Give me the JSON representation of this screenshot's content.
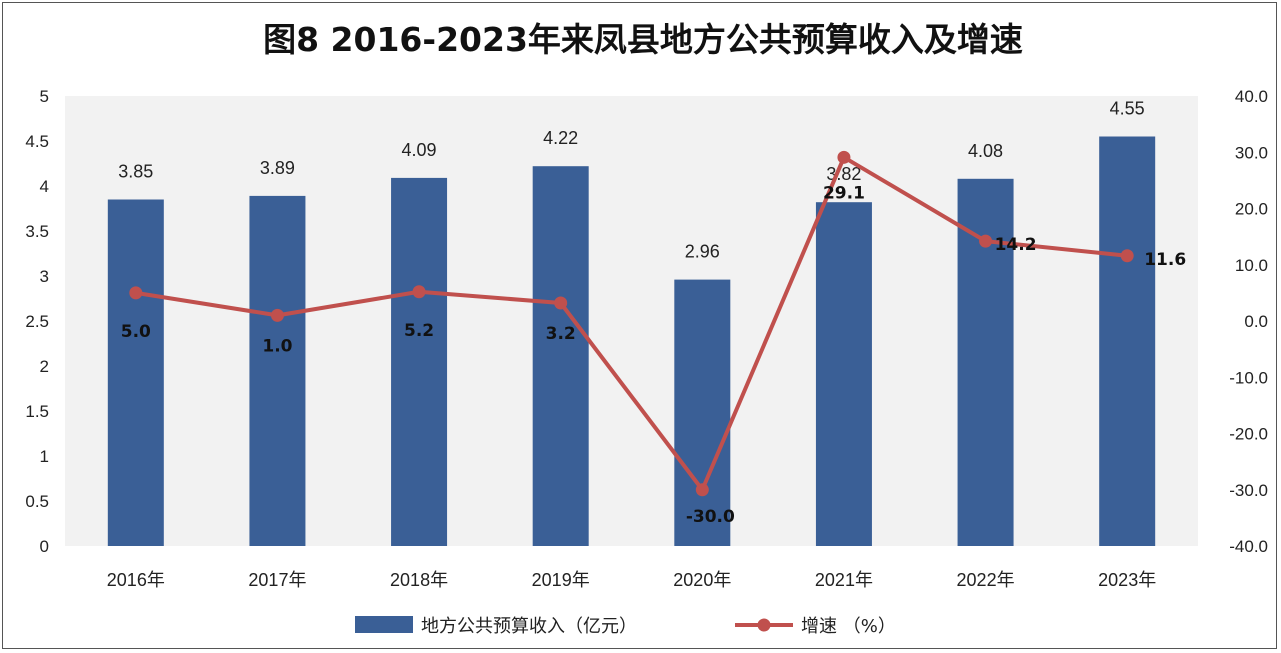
{
  "chart_data": {
    "type": "bar",
    "title": "图8  2016-2023年来凤县地方公共预算收入及增速",
    "categories": [
      "2016年",
      "2017年",
      "2018年",
      "2019年",
      "2020年",
      "2021年",
      "2022年",
      "2023年"
    ],
    "series": [
      {
        "name": "地方公共预算收入（亿元）",
        "type": "bar",
        "axis": "left",
        "color": "#3A5F96",
        "values": [
          3.85,
          3.89,
          4.09,
          4.22,
          2.96,
          3.82,
          4.08,
          4.55
        ],
        "labels": [
          "3.85",
          "3.89",
          "4.09",
          "4.22",
          "2.96",
          "3.82",
          "4.08",
          "4.55"
        ]
      },
      {
        "name": "增速 （%）",
        "type": "line",
        "axis": "right",
        "color": "#C0504D",
        "values": [
          5.0,
          1.0,
          5.2,
          3.2,
          -30.0,
          29.1,
          14.2,
          11.6
        ],
        "labels": [
          "5.0",
          "1.0",
          "5.2",
          "3.2",
          "-30.0",
          "29.1",
          "14.2",
          "11.6"
        ]
      }
    ],
    "left_axis": {
      "ylim": [
        0,
        5
      ],
      "ticks": [
        0,
        0.5,
        1,
        1.5,
        2,
        2.5,
        3,
        3.5,
        4,
        4.5,
        5
      ],
      "tick_labels": [
        "0",
        "0.5",
        "1",
        "1.5",
        "2",
        "2.5",
        "3",
        "3.5",
        "4",
        "4.5",
        "5"
      ]
    },
    "right_axis": {
      "ylim": [
        -40,
        40
      ],
      "ticks": [
        -40,
        -30,
        -20,
        -10,
        0,
        10,
        20,
        30,
        40
      ],
      "tick_labels": [
        "-40.0",
        "-30.0",
        "-20.0",
        "-10.0",
        "0.0",
        "10.0",
        "20.0",
        "30.0",
        "40.0"
      ]
    },
    "grid": false,
    "legend": "bottom"
  }
}
